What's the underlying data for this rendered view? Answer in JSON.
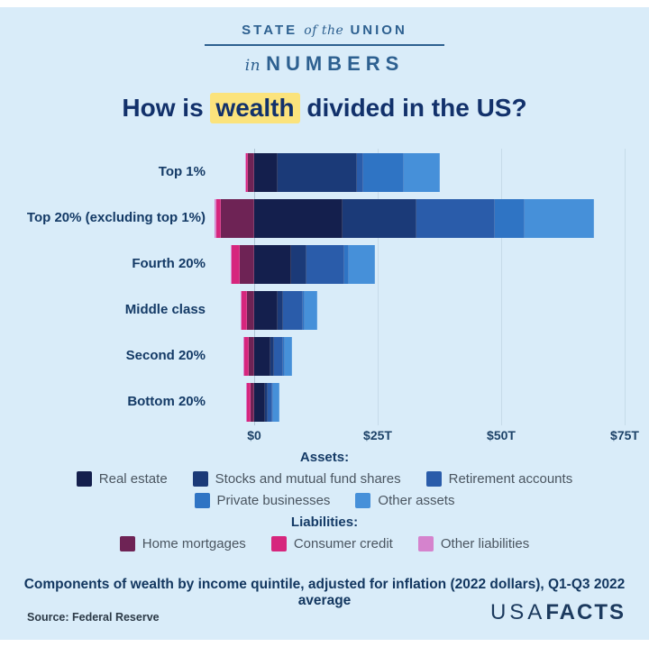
{
  "masthead": {
    "line1_left": "STATE",
    "line1_mid": "of the",
    "line1_right": "UNION",
    "line2_pre": "in",
    "line2_main": "NUMBERS"
  },
  "title": {
    "pre": "How is ",
    "highlight": "wealth",
    "post": " divided in the US?",
    "highlight_color": "#fbe37c"
  },
  "chart_data": {
    "type": "bar",
    "orientation": "horizontal-diverging-stacked",
    "title": "How is wealth divided in the US?",
    "unit": "trillions of US dollars",
    "xlim": [
      -10,
      80
    ],
    "grid": true,
    "x_axis": {
      "ticks": [
        "$0",
        "$25T",
        "$50T",
        "$75T"
      ],
      "values": [
        0,
        25,
        50,
        75
      ]
    },
    "categories": [
      "Top 1%",
      "Top 20% (excluding top 1%)",
      "Fourth 20%",
      "Middle class",
      "Second 20%",
      "Bottom 20%"
    ],
    "series": [
      {
        "name": "Real estate",
        "type": "asset",
        "color": "#141f4d",
        "values": [
          4.8,
          17.8,
          7.5,
          4.7,
          3.3,
          2.2
        ]
      },
      {
        "name": "Stocks and mutual fund shares",
        "type": "asset",
        "color": "#1b3a78",
        "values": [
          16.0,
          15.0,
          3.0,
          1.2,
          0.8,
          0.5
        ]
      },
      {
        "name": "Retirement accounts",
        "type": "asset",
        "color": "#2a5caa",
        "values": [
          1.3,
          16.0,
          7.8,
          4.0,
          1.8,
          1.0
        ]
      },
      {
        "name": "Private businesses",
        "type": "asset",
        "color": "#2f74c4",
        "values": [
          8.2,
          6.0,
          0.9,
          0.4,
          0.3,
          0.2
        ]
      },
      {
        "name": "Other assets",
        "type": "asset",
        "color": "#4690d9",
        "values": [
          7.3,
          14.0,
          5.3,
          2.4,
          1.4,
          1.3
        ]
      },
      {
        "name": "Home mortgages",
        "type": "liability",
        "color": "#6e2355",
        "values": [
          -1.2,
          -6.7,
          -2.9,
          -1.4,
          -1.1,
          -0.7
        ]
      },
      {
        "name": "Consumer credit",
        "type": "liability",
        "color": "#d6267d",
        "values": [
          -0.4,
          -0.9,
          -1.6,
          -1.2,
          -1.0,
          -0.9
        ]
      },
      {
        "name": "Other liabilities",
        "type": "liability",
        "color": "#d583cd",
        "values": [
          -0.3,
          -0.5,
          -0.2,
          -0.15,
          -0.1,
          -0.1
        ]
      }
    ],
    "legend_position": "below"
  },
  "legend": {
    "assets_label": "Assets:",
    "liabilities_label": "Liabilities:"
  },
  "caption": "Components of wealth by income quintile, adjusted for inflation (2022 dollars), Q1-Q3 2022 average",
  "source": "Source: Federal Reserve",
  "logo": {
    "usa": "USA",
    "facts": "FACTS"
  },
  "colors": {
    "background": "#d9ecf9",
    "title_text": "#12316b",
    "masthead_text": "#2d6090",
    "label_text": "#143a66",
    "gridline": "#c6dbe9"
  }
}
